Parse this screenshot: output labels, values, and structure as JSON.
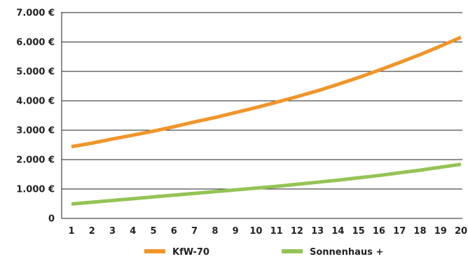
{
  "chart_data": {
    "type": "line",
    "title": "",
    "xlabel": "",
    "ylabel": "",
    "x": [
      1,
      2,
      3,
      4,
      5,
      6,
      7,
      8,
      9,
      10,
      11,
      12,
      13,
      14,
      15,
      16,
      17,
      18,
      19,
      20
    ],
    "ylim": [
      0,
      7000
    ],
    "y_ticks": [
      0,
      1000,
      2000,
      3000,
      4000,
      5000,
      6000,
      7000
    ],
    "y_tick_labels": [
      "0",
      "1.000 €",
      "2.000 €",
      "3.000 €",
      "4.000 €",
      "5.000 €",
      "6.000 €",
      "7.000 €"
    ],
    "grid": "horizontal",
    "legend_position": "bottom",
    "series": [
      {
        "name": "KfW-70",
        "color": "#f0952a",
        "values": [
          2440,
          2560,
          2700,
          2830,
          2970,
          3120,
          3280,
          3430,
          3600,
          3770,
          3950,
          4140,
          4340,
          4560,
          4790,
          5040,
          5300,
          5570,
          5860,
          6160
        ]
      },
      {
        "name": "Sonnenhaus +",
        "color": "#94c455",
        "values": [
          490,
          550,
          610,
          670,
          730,
          790,
          850,
          910,
          970,
          1030,
          1090,
          1160,
          1230,
          1300,
          1380,
          1460,
          1550,
          1640,
          1740,
          1840
        ]
      }
    ]
  }
}
